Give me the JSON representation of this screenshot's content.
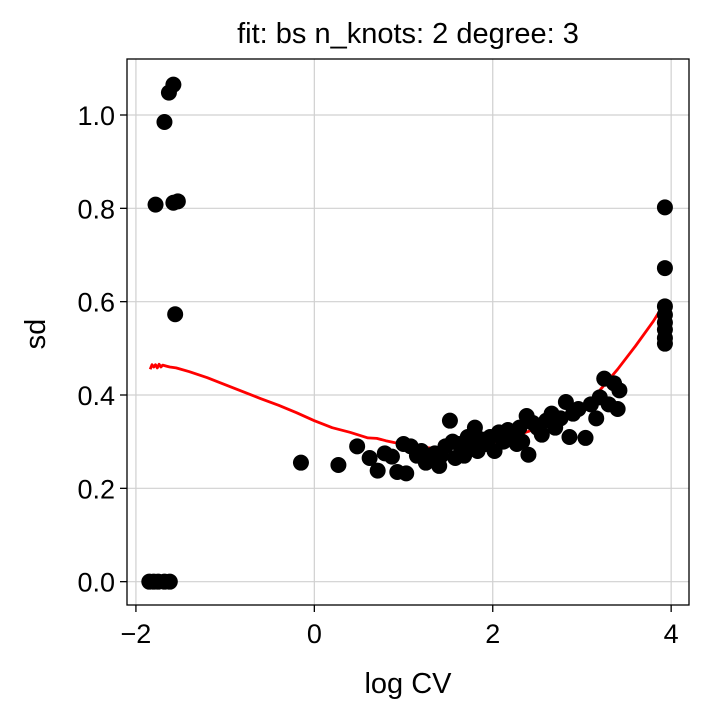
{
  "chart_data": {
    "type": "scatter",
    "title": "fit: bs n_knots: 2 degree: 3",
    "xlabel": "log CV",
    "ylabel": "sd",
    "xlim": [
      -2.1,
      4.2
    ],
    "ylim": [
      -0.05,
      1.12
    ],
    "x_ticks": [
      -2,
      0,
      2,
      4
    ],
    "y_ticks": [
      0.0,
      0.2,
      0.4,
      0.6,
      0.8,
      1.0
    ],
    "x_tick_labels": [
      "−2",
      "0",
      "2",
      "4"
    ],
    "y_tick_labels": [
      "0.0",
      "0.2",
      "0.4",
      "0.6",
      "0.8",
      "1.0"
    ],
    "grid": true,
    "colors": {
      "points": "#000000",
      "fit_line": "#ff0000",
      "grid": "#d0d0d0"
    },
    "series": [
      {
        "kind": "points",
        "x": [
          -1.85,
          -1.8,
          -1.75,
          -1.68,
          -1.62,
          -1.58,
          -1.78,
          -1.68,
          -1.63,
          -1.58,
          -1.53,
          -1.56,
          -0.15,
          0.27,
          0.48,
          0.62,
          0.71,
          0.79,
          0.87,
          0.93,
          1.0,
          1.03,
          1.08,
          1.15,
          1.2,
          1.25,
          1.3,
          1.35,
          1.4,
          1.42,
          1.47,
          1.52,
          1.55,
          1.58,
          1.62,
          1.65,
          1.68,
          1.72,
          1.76,
          1.8,
          1.83,
          1.87,
          1.92,
          1.97,
          2.02,
          2.07,
          2.12,
          2.17,
          2.22,
          2.27,
          2.3,
          2.33,
          2.38,
          2.4,
          2.45,
          2.5,
          2.55,
          2.6,
          2.66,
          2.7,
          2.76,
          2.82,
          2.86,
          2.9,
          2.96,
          3.04,
          3.1,
          3.16,
          3.2,
          3.25,
          3.3,
          3.36,
          3.4,
          3.42,
          3.93,
          3.93,
          3.93,
          3.93,
          3.93,
          3.93,
          3.93,
          3.93
        ],
        "y": [
          0.0,
          0.0,
          0.0,
          0.0,
          0.0,
          1.065,
          0.808,
          0.985,
          1.048,
          0.812,
          0.815,
          0.573,
          0.255,
          0.25,
          0.29,
          0.265,
          0.238,
          0.275,
          0.268,
          0.235,
          0.295,
          0.232,
          0.29,
          0.27,
          0.28,
          0.255,
          0.265,
          0.275,
          0.248,
          0.27,
          0.29,
          0.345,
          0.3,
          0.265,
          0.295,
          0.285,
          0.27,
          0.31,
          0.29,
          0.33,
          0.28,
          0.305,
          0.295,
          0.31,
          0.28,
          0.32,
          0.3,
          0.325,
          0.31,
          0.295,
          0.33,
          0.3,
          0.355,
          0.272,
          0.34,
          0.33,
          0.315,
          0.345,
          0.36,
          0.33,
          0.35,
          0.385,
          0.31,
          0.36,
          0.37,
          0.308,
          0.38,
          0.35,
          0.395,
          0.435,
          0.38,
          0.425,
          0.37,
          0.41,
          0.802,
          0.672,
          0.59,
          0.572,
          0.555,
          0.54,
          0.522,
          0.51
        ]
      },
      {
        "kind": "line",
        "x": [
          -1.84,
          -1.82,
          -1.8,
          -1.78,
          -1.76,
          -1.74,
          -1.72,
          -1.7,
          -1.66,
          -1.62,
          -1.55,
          -1.4,
          -1.2,
          -1.0,
          -0.8,
          -0.6,
          -0.4,
          -0.2,
          0.0,
          0.2,
          0.4,
          0.6,
          0.7,
          0.8,
          0.9,
          1.0,
          1.2,
          1.4,
          1.6,
          1.8,
          2.0,
          2.2,
          2.4,
          2.6,
          2.8,
          3.0,
          3.1,
          3.2,
          3.4,
          3.6,
          3.8,
          3.92
        ],
        "y": [
          0.455,
          0.465,
          0.46,
          0.465,
          0.458,
          0.466,
          0.46,
          0.464,
          0.462,
          0.46,
          0.458,
          0.45,
          0.437,
          0.422,
          0.407,
          0.392,
          0.378,
          0.362,
          0.345,
          0.33,
          0.32,
          0.308,
          0.307,
          0.302,
          0.298,
          0.295,
          0.288,
          0.285,
          0.287,
          0.29,
          0.298,
          0.31,
          0.322,
          0.338,
          0.355,
          0.378,
          0.39,
          0.41,
          0.455,
          0.505,
          0.558,
          0.595
        ]
      }
    ]
  }
}
